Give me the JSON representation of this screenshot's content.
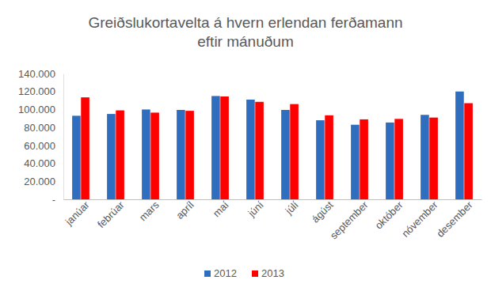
{
  "chart_data": {
    "type": "bar",
    "title": "Greiðslukortavelta á hvern erlendan ferðamann\neftir mánuðum",
    "categories": [
      "janúar",
      "febrúar",
      "mars",
      "apríl",
      "maí",
      "júní",
      "júlí",
      "ágúst",
      "september",
      "október",
      "nóvember",
      "desember"
    ],
    "series": [
      {
        "name": "2012",
        "color": "#2f6ebf",
        "values": [
          93000,
          95000,
          100000,
          99500,
          115000,
          111000,
          99500,
          88000,
          83000,
          85500,
          94000,
          120000
        ]
      },
      {
        "name": "2013",
        "color": "#ff0000",
        "values": [
          113500,
          99000,
          96500,
          98500,
          114500,
          108500,
          106000,
          93500,
          89000,
          89500,
          91000,
          107000
        ]
      }
    ],
    "ylim": [
      0,
      140000
    ],
    "yticks": [
      {
        "value": 0,
        "label": "-"
      },
      {
        "value": 20000,
        "label": "20.000"
      },
      {
        "value": 40000,
        "label": "40.000"
      },
      {
        "value": 60000,
        "label": "60.000"
      },
      {
        "value": 80000,
        "label": "80.000"
      },
      {
        "value": 100000,
        "label": "100.000"
      },
      {
        "value": 120000,
        "label": "120.000"
      },
      {
        "value": 140000,
        "label": "140.000"
      }
    ],
    "grid": false,
    "legend": "bottom"
  }
}
